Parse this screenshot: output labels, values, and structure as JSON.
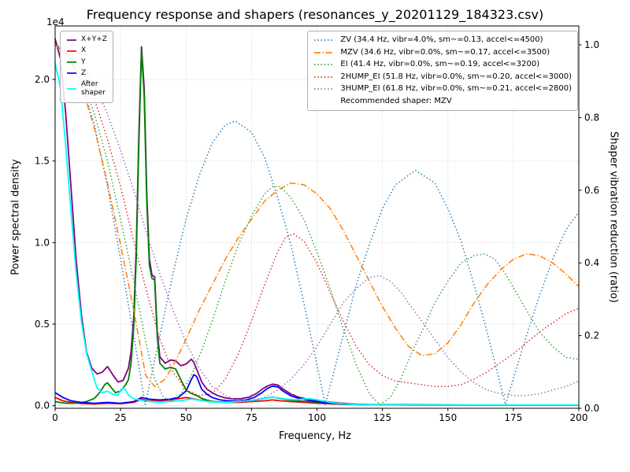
{
  "chart_data": {
    "type": "line",
    "title": "Frequency response and shapers (resonances_y_20201129_184323.csv)",
    "xlabel": "Frequency, Hz",
    "ylabel": "Power spectral density",
    "ylabel_right": "Shaper vibration reduction (ratio)",
    "offset_text": "1e4",
    "grid": true,
    "x_lim": [
      0,
      200
    ],
    "x_ticks": [
      0,
      25,
      50,
      75,
      100,
      125,
      150,
      175,
      200
    ],
    "x_tick_labels": [
      "0",
      "25",
      "50",
      "75",
      "100",
      "125",
      "150",
      "175",
      "200"
    ],
    "y_left_lim": [
      -160,
      23280
    ],
    "y_left_ticks": [
      0,
      5000,
      10000,
      15000,
      20000
    ],
    "y_left_tick_labels": [
      "0.0",
      "0.5",
      "1.0",
      "1.5",
      "2.0"
    ],
    "y_right_lim": [
      0,
      1.052
    ],
    "y_right_ticks": [
      0,
      0.2,
      0.4,
      0.6,
      0.8,
      1.0
    ],
    "y_right_tick_labels": [
      "0.0",
      "0.2",
      "0.4",
      "0.6",
      "0.8",
      "1.0"
    ],
    "legend_psd": {
      "entries": [
        {
          "label": "X+Y+Z",
          "color": "#800080",
          "style": "solid"
        },
        {
          "label": "X",
          "color": "#ff0000",
          "style": "solid"
        },
        {
          "label": "Y",
          "color": "#008000",
          "style": "solid"
        },
        {
          "label": "Z",
          "color": "#0000ff",
          "style": "solid"
        },
        {
          "label": "After\nshaper",
          "color": "#00ffff",
          "style": "solid"
        }
      ]
    },
    "legend_shapers": {
      "entries": [
        {
          "label": "ZV (34.4 Hz, vibr=4.0%, sm~=0.13, accel<=4500)",
          "color": "#1f77b4",
          "style": "dotted"
        },
        {
          "label": "MZV (34.6 Hz, vibr=0.0%, sm~=0.17, accel<=3500)",
          "color": "#ff7f0e",
          "style": "dashdot"
        },
        {
          "label": "EI (41.4 Hz, vibr=0.0%, sm~=0.19, accel<=3200)",
          "color": "#2ca02c",
          "style": "dotted"
        },
        {
          "label": "2HUMP_EI (51.8 Hz, vibr=0.0%, sm~=0.20, accel<=3000)",
          "color": "#d62728",
          "style": "dotted"
        },
        {
          "label": "3HUMP_EI (61.8 Hz, vibr=0.0%, sm~=0.21, accel<=2800)",
          "color": "#9467bd",
          "style": "dotted"
        }
      ],
      "footer": "Recommended shaper: MZV"
    },
    "series": [
      {
        "id": "psd-xyz",
        "label": "X+Y+Z",
        "axis": "left",
        "color": "#800080",
        "style": "solid",
        "x": [
          0,
          2,
          4,
          6,
          8,
          10,
          12,
          14,
          16,
          18,
          20,
          22,
          24,
          26,
          28,
          29,
          30,
          31,
          32,
          33,
          34,
          35,
          36,
          37,
          38,
          39,
          40,
          42,
          44,
          46,
          48,
          50,
          51,
          52,
          53,
          54,
          55,
          56,
          58,
          60,
          62,
          65,
          68,
          71,
          74,
          77,
          79,
          81,
          83,
          85,
          87,
          90,
          93,
          96,
          100,
          104,
          108,
          112,
          116,
          120,
          130,
          140,
          150,
          160,
          170,
          180,
          190,
          200
        ],
        "y": [
          22500,
          21300,
          18000,
          13500,
          9000,
          5600,
          3300,
          2300,
          1950,
          2050,
          2400,
          1900,
          1450,
          1550,
          2300,
          3300,
          5400,
          9800,
          16800,
          22000,
          19500,
          13000,
          9000,
          8000,
          7900,
          4500,
          3000,
          2600,
          2800,
          2750,
          2450,
          2550,
          2700,
          2850,
          2650,
          2250,
          1850,
          1450,
          1000,
          800,
          620,
          470,
          420,
          430,
          520,
          750,
          1000,
          1200,
          1320,
          1270,
          1020,
          720,
          520,
          420,
          310,
          240,
          170,
          120,
          85,
          65,
          50,
          45,
          42,
          40,
          40,
          40,
          40,
          40
        ]
      },
      {
        "id": "psd-x",
        "label": "X",
        "axis": "left",
        "color": "#ff0000",
        "style": "solid",
        "x": [
          0,
          3,
          6,
          10,
          15,
          20,
          25,
          30,
          33,
          36,
          40,
          44,
          48,
          50,
          52,
          55,
          60,
          65,
          70,
          75,
          80,
          83,
          86,
          90,
          95,
          100,
          110,
          120,
          140,
          160,
          180,
          200
        ],
        "y": [
          500,
          300,
          200,
          130,
          100,
          150,
          120,
          200,
          400,
          300,
          300,
          350,
          450,
          500,
          450,
          350,
          250,
          200,
          200,
          250,
          300,
          350,
          300,
          250,
          200,
          150,
          80,
          50,
          40,
          40,
          40,
          40
        ]
      },
      {
        "id": "psd-y",
        "label": "Y",
        "axis": "left",
        "color": "#008000",
        "style": "solid",
        "x": [
          0,
          4,
          8,
          12,
          15,
          17,
          19,
          20,
          21,
          23,
          25,
          27,
          28,
          29,
          30,
          31,
          32,
          33,
          34,
          35,
          36,
          37,
          38,
          39,
          40,
          42,
          44,
          46,
          48,
          50,
          52,
          54,
          56,
          58,
          60,
          63,
          66,
          70,
          74,
          78,
          81,
          83,
          85,
          88,
          92,
          96,
          100,
          105,
          110,
          120,
          140,
          160,
          180,
          200
        ],
        "y": [
          250,
          150,
          150,
          250,
          450,
          800,
          1300,
          1400,
          1200,
          800,
          900,
          1300,
          1600,
          2600,
          4800,
          9200,
          16200,
          21800,
          19000,
          12500,
          8600,
          7800,
          7700,
          4200,
          2600,
          2250,
          2350,
          2250,
          1600,
          950,
          750,
          620,
          450,
          330,
          270,
          220,
          230,
          260,
          300,
          380,
          470,
          520,
          470,
          380,
          300,
          250,
          210,
          140,
          90,
          55,
          45,
          40,
          40,
          40
        ]
      },
      {
        "id": "psd-z",
        "label": "Z",
        "axis": "left",
        "color": "#0000ff",
        "style": "solid",
        "x": [
          0,
          3,
          6,
          10,
          15,
          20,
          25,
          30,
          33,
          36,
          40,
          44,
          47,
          50,
          52,
          53,
          54,
          55,
          56,
          58,
          60,
          63,
          66,
          70,
          73,
          76,
          79,
          81,
          83,
          85,
          87,
          90,
          93,
          96,
          100,
          105,
          110,
          120,
          140,
          160,
          180,
          200
        ],
        "y": [
          800,
          500,
          300,
          200,
          150,
          200,
          150,
          250,
          500,
          400,
          350,
          400,
          500,
          900,
          1600,
          1900,
          1800,
          1400,
          1000,
          700,
          500,
          350,
          300,
          300,
          350,
          500,
          800,
          1050,
          1200,
          1150,
          900,
          600,
          450,
          350,
          250,
          150,
          100,
          60,
          40,
          40,
          40,
          40
        ]
      },
      {
        "id": "psd-after-shaper",
        "label": "After shaper",
        "axis": "left",
        "color": "#00ffff",
        "style": "solid",
        "x": [
          0,
          2,
          4,
          6,
          8,
          10,
          12,
          14,
          16,
          18,
          20,
          22,
          24,
          25,
          26,
          27,
          28,
          30,
          32,
          34,
          36,
          40,
          44,
          48,
          50,
          52,
          54,
          58,
          62,
          66,
          70,
          74,
          78,
          81,
          83,
          85,
          88,
          92,
          95,
          97,
          100,
          103,
          107,
          110,
          115,
          120,
          130,
          140,
          160,
          180,
          200
        ],
        "y": [
          21000,
          19500,
          16000,
          12000,
          8200,
          5200,
          3200,
          2100,
          1100,
          800,
          880,
          700,
          650,
          950,
          1100,
          950,
          650,
          420,
          360,
          310,
          260,
          210,
          260,
          310,
          360,
          410,
          360,
          260,
          210,
          210,
          260,
          310,
          380,
          460,
          510,
          490,
          410,
          360,
          410,
          430,
          360,
          260,
          160,
          110,
          75,
          55,
          42,
          40,
          40,
          40,
          40
        ]
      },
      {
        "id": "shaper-zv",
        "label": "ZV",
        "axis": "right",
        "color": "#1f77b4",
        "style": "dotted",
        "x": [
          0,
          5,
          10,
          15,
          20,
          25,
          30,
          34.4,
          40,
          45,
          50,
          55,
          60,
          65,
          68.8,
          75,
          80,
          85,
          90,
          95,
          100,
          103.2,
          110,
          115,
          120,
          125,
          130,
          137.6,
          145,
          150,
          155,
          160,
          165,
          172,
          180,
          185,
          190,
          195,
          200
        ],
        "y": [
          1.0,
          0.97,
          0.9,
          0.78,
          0.61,
          0.41,
          0.2,
          0.01,
          0.2,
          0.37,
          0.52,
          0.64,
          0.73,
          0.78,
          0.79,
          0.76,
          0.69,
          0.58,
          0.45,
          0.29,
          0.12,
          0.01,
          0.2,
          0.34,
          0.45,
          0.55,
          0.615,
          0.655,
          0.62,
          0.55,
          0.46,
          0.34,
          0.21,
          0.01,
          0.2,
          0.31,
          0.41,
          0.49,
          0.54
        ]
      },
      {
        "id": "shaper-mzv",
        "label": "MZV",
        "axis": "right",
        "color": "#ff7f0e",
        "style": "dashdot",
        "x": [
          0,
          5,
          10,
          15,
          20,
          25,
          30,
          34.6,
          38,
          42,
          46,
          50,
          55,
          60,
          65,
          70,
          75,
          80,
          85,
          90,
          95,
          100,
          105,
          110,
          115,
          120,
          125,
          130,
          135,
          140,
          145,
          150,
          155,
          160,
          165,
          170,
          175,
          180,
          185,
          190,
          195,
          200
        ],
        "y": [
          1.0,
          0.97,
          0.89,
          0.77,
          0.62,
          0.45,
          0.27,
          0.09,
          0.06,
          0.08,
          0.13,
          0.19,
          0.27,
          0.34,
          0.41,
          0.47,
          0.52,
          0.57,
          0.6,
          0.62,
          0.615,
          0.59,
          0.55,
          0.49,
          0.42,
          0.35,
          0.28,
          0.22,
          0.17,
          0.145,
          0.15,
          0.18,
          0.23,
          0.29,
          0.34,
          0.38,
          0.41,
          0.425,
          0.42,
          0.4,
          0.37,
          0.335
        ]
      },
      {
        "id": "shaper-ei",
        "label": "EI",
        "axis": "right",
        "color": "#2ca02c",
        "style": "dotted",
        "x": [
          0,
          5,
          10,
          15,
          20,
          25,
          30,
          35,
          38,
          41.4,
          45,
          48,
          52,
          56,
          60,
          65,
          70,
          75,
          80,
          83,
          86,
          90,
          95,
          100,
          105,
          110,
          115,
          120,
          124,
          128,
          132,
          136,
          140,
          145,
          150,
          155,
          160,
          164,
          168,
          172,
          176,
          180,
          185,
          190,
          195,
          200
        ],
        "y": [
          1.0,
          0.975,
          0.91,
          0.81,
          0.68,
          0.52,
          0.35,
          0.17,
          0.08,
          0.03,
          0.02,
          0.04,
          0.09,
          0.16,
          0.24,
          0.35,
          0.45,
          0.53,
          0.59,
          0.61,
          0.61,
          0.58,
          0.52,
          0.43,
          0.33,
          0.22,
          0.12,
          0.04,
          0.01,
          0.03,
          0.08,
          0.15,
          0.21,
          0.29,
          0.35,
          0.4,
          0.42,
          0.425,
          0.41,
          0.37,
          0.32,
          0.27,
          0.21,
          0.17,
          0.14,
          0.135
        ]
      },
      {
        "id": "shaper-2hump-ei",
        "label": "2HUMP_EI",
        "axis": "right",
        "color": "#d62728",
        "style": "dotted",
        "x": [
          0,
          5,
          10,
          15,
          20,
          25,
          30,
          35,
          40,
          45,
          50,
          55,
          60,
          65,
          70,
          75,
          80,
          85,
          88,
          91,
          95,
          100,
          105,
          110,
          115,
          120,
          125,
          130,
          135,
          140,
          145,
          150,
          155,
          160,
          165,
          170,
          175,
          180,
          185,
          190,
          195,
          200
        ],
        "y": [
          1.0,
          0.98,
          0.93,
          0.85,
          0.74,
          0.61,
          0.46,
          0.32,
          0.19,
          0.1,
          0.05,
          0.035,
          0.04,
          0.08,
          0.15,
          0.24,
          0.34,
          0.43,
          0.47,
          0.48,
          0.46,
          0.4,
          0.32,
          0.24,
          0.17,
          0.12,
          0.09,
          0.075,
          0.07,
          0.065,
          0.06,
          0.06,
          0.065,
          0.08,
          0.1,
          0.125,
          0.15,
          0.18,
          0.21,
          0.235,
          0.26,
          0.275
        ]
      },
      {
        "id": "shaper-3hump-ei",
        "label": "3HUMP_EI",
        "axis": "right",
        "color": "#9467bd",
        "style": "dotted",
        "x": [
          0,
          5,
          10,
          15,
          20,
          25,
          30,
          35,
          40,
          45,
          50,
          55,
          60,
          65,
          70,
          75,
          80,
          85,
          90,
          95,
          100,
          105,
          110,
          115,
          120,
          124,
          128,
          132,
          136,
          140,
          145,
          150,
          155,
          160,
          165,
          170,
          175,
          180,
          185,
          190,
          195,
          200
        ],
        "y": [
          1.0,
          0.985,
          0.95,
          0.89,
          0.81,
          0.71,
          0.6,
          0.48,
          0.37,
          0.27,
          0.18,
          0.11,
          0.06,
          0.035,
          0.02,
          0.02,
          0.03,
          0.05,
          0.08,
          0.12,
          0.17,
          0.23,
          0.29,
          0.33,
          0.36,
          0.365,
          0.35,
          0.32,
          0.28,
          0.24,
          0.19,
          0.14,
          0.1,
          0.07,
          0.05,
          0.04,
          0.035,
          0.035,
          0.04,
          0.05,
          0.06,
          0.075
        ]
      }
    ]
  }
}
